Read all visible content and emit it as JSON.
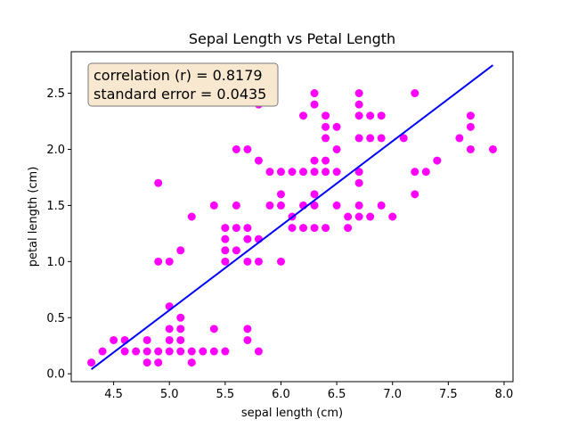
{
  "chart_data": {
    "type": "scatter",
    "title": "Sepal Length vs Petal Length",
    "xlabel": "sepal length (cm)",
    "ylabel": "petal length (cm)",
    "xlim": [
      4.12,
      8.08
    ],
    "ylim": [
      -0.07,
      2.87
    ],
    "xticks": [
      "4.5",
      "5.0",
      "5.5",
      "6.0",
      "6.5",
      "7.0",
      "7.5",
      "8.0"
    ],
    "yticks": [
      "0.0",
      "0.5",
      "1.0",
      "1.5",
      "2.0",
      "2.5"
    ],
    "grid": false,
    "points": [
      [
        4.3,
        0.1
      ],
      [
        4.4,
        0.2
      ],
      [
        4.5,
        0.3
      ],
      [
        4.6,
        0.2
      ],
      [
        4.6,
        0.3
      ],
      [
        4.7,
        0.2
      ],
      [
        4.8,
        0.1
      ],
      [
        4.8,
        0.2
      ],
      [
        4.8,
        0.3
      ],
      [
        4.9,
        0.1
      ],
      [
        4.9,
        0.2
      ],
      [
        5.0,
        0.2
      ],
      [
        5.0,
        0.3
      ],
      [
        5.0,
        0.4
      ],
      [
        5.0,
        0.6
      ],
      [
        5.1,
        0.2
      ],
      [
        5.1,
        0.3
      ],
      [
        5.1,
        0.4
      ],
      [
        5.1,
        0.5
      ],
      [
        5.2,
        0.1
      ],
      [
        5.2,
        0.2
      ],
      [
        5.3,
        0.2
      ],
      [
        5.4,
        0.2
      ],
      [
        5.4,
        0.4
      ],
      [
        5.5,
        0.2
      ],
      [
        5.7,
        0.3
      ],
      [
        5.7,
        0.4
      ],
      [
        5.8,
        0.2
      ],
      [
        4.9,
        1.0
      ],
      [
        5.0,
        1.0
      ],
      [
        5.5,
        1.0
      ],
      [
        5.7,
        1.0
      ],
      [
        5.8,
        1.0
      ],
      [
        6.0,
        1.0
      ],
      [
        5.1,
        1.1
      ],
      [
        5.5,
        1.1
      ],
      [
        5.6,
        1.1
      ],
      [
        5.5,
        1.2
      ],
      [
        5.7,
        1.2
      ],
      [
        5.8,
        1.2
      ],
      [
        5.5,
        1.3
      ],
      [
        5.6,
        1.3
      ],
      [
        5.7,
        1.3
      ],
      [
        6.1,
        1.3
      ],
      [
        6.2,
        1.3
      ],
      [
        6.3,
        1.3
      ],
      [
        6.4,
        1.3
      ],
      [
        6.6,
        1.3
      ],
      [
        5.2,
        1.4
      ],
      [
        6.1,
        1.4
      ],
      [
        6.6,
        1.4
      ],
      [
        6.7,
        1.4
      ],
      [
        6.8,
        1.4
      ],
      [
        7.0,
        1.4
      ],
      [
        5.4,
        1.5
      ],
      [
        5.6,
        1.5
      ],
      [
        5.9,
        1.5
      ],
      [
        6.0,
        1.5
      ],
      [
        6.2,
        1.5
      ],
      [
        6.3,
        1.5
      ],
      [
        6.5,
        1.5
      ],
      [
        6.7,
        1.5
      ],
      [
        6.9,
        1.5
      ],
      [
        6.0,
        1.6
      ],
      [
        6.3,
        1.6
      ],
      [
        7.2,
        1.6
      ],
      [
        4.9,
        1.7
      ],
      [
        6.7,
        1.7
      ],
      [
        5.9,
        1.8
      ],
      [
        6.0,
        1.8
      ],
      [
        6.1,
        1.8
      ],
      [
        6.2,
        1.8
      ],
      [
        6.3,
        1.8
      ],
      [
        6.4,
        1.8
      ],
      [
        6.5,
        1.8
      ],
      [
        6.7,
        1.8
      ],
      [
        7.2,
        1.8
      ],
      [
        7.3,
        1.8
      ],
      [
        5.8,
        1.9
      ],
      [
        6.3,
        1.9
      ],
      [
        6.4,
        1.9
      ],
      [
        7.4,
        1.9
      ],
      [
        5.6,
        2.0
      ],
      [
        5.7,
        2.0
      ],
      [
        6.5,
        2.0
      ],
      [
        7.7,
        2.0
      ],
      [
        7.9,
        2.0
      ],
      [
        6.4,
        2.1
      ],
      [
        6.7,
        2.1
      ],
      [
        6.8,
        2.1
      ],
      [
        6.9,
        2.1
      ],
      [
        7.1,
        2.1
      ],
      [
        7.6,
        2.1
      ],
      [
        6.4,
        2.2
      ],
      [
        6.5,
        2.2
      ],
      [
        7.7,
        2.2
      ],
      [
        6.2,
        2.3
      ],
      [
        6.4,
        2.3
      ],
      [
        6.7,
        2.3
      ],
      [
        6.8,
        2.3
      ],
      [
        6.9,
        2.3
      ],
      [
        7.7,
        2.3
      ],
      [
        5.8,
        2.4
      ],
      [
        6.3,
        2.4
      ],
      [
        6.7,
        2.4
      ],
      [
        6.3,
        2.5
      ],
      [
        6.7,
        2.5
      ],
      [
        7.2,
        2.5
      ]
    ],
    "point_color": "#ff00ff",
    "fit_line": {
      "x": [
        4.3,
        7.9
      ],
      "y": [
        0.04,
        2.75
      ],
      "color": "#0000ff"
    },
    "annotation": {
      "lines": [
        "correlation (r) = 0.8179",
        "standard error = 0.0435"
      ],
      "background": "#f8e8d0",
      "border": "#7a7a7a"
    }
  }
}
